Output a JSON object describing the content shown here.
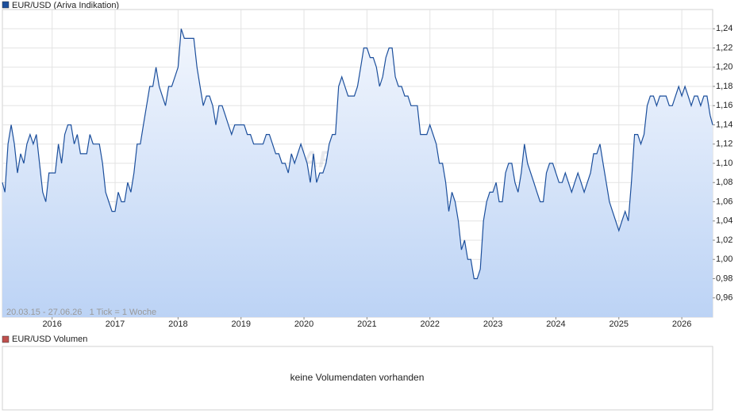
{
  "chart_data": {
    "type": "area",
    "series": [
      {
        "name": "EUR/USD (Ariva Indikation)",
        "color": "#1c4f9c",
        "x": [
          2015.21,
          2015.25,
          2015.3,
          2015.35,
          2015.4,
          2015.45,
          2015.5,
          2015.55,
          2015.6,
          2015.65,
          2015.7,
          2015.75,
          2015.8,
          2015.85,
          2015.9,
          2015.95,
          2016.0,
          2016.05,
          2016.1,
          2016.15,
          2016.2,
          2016.25,
          2016.3,
          2016.35,
          2016.4,
          2016.45,
          2016.5,
          2016.55,
          2016.6,
          2016.65,
          2016.7,
          2016.75,
          2016.8,
          2016.85,
          2016.9,
          2016.95,
          2017.0,
          2017.05,
          2017.1,
          2017.15,
          2017.2,
          2017.25,
          2017.3,
          2017.35,
          2017.4,
          2017.45,
          2017.5,
          2017.55,
          2017.6,
          2017.65,
          2017.7,
          2017.75,
          2017.8,
          2017.85,
          2017.9,
          2017.95,
          2018.0,
          2018.05,
          2018.1,
          2018.15,
          2018.2,
          2018.25,
          2018.3,
          2018.35,
          2018.4,
          2018.45,
          2018.5,
          2018.55,
          2018.6,
          2018.65,
          2018.7,
          2018.75,
          2018.8,
          2018.85,
          2018.9,
          2018.95,
          2019.0,
          2019.05,
          2019.1,
          2019.15,
          2019.2,
          2019.25,
          2019.3,
          2019.35,
          2019.4,
          2019.45,
          2019.5,
          2019.55,
          2019.6,
          2019.65,
          2019.7,
          2019.75,
          2019.8,
          2019.85,
          2019.9,
          2019.95,
          2020.0,
          2020.05,
          2020.1,
          2020.15,
          2020.2,
          2020.25,
          2020.3,
          2020.35,
          2020.4,
          2020.45,
          2020.5,
          2020.55,
          2020.6,
          2020.65,
          2020.7,
          2020.75,
          2020.8,
          2020.85,
          2020.9,
          2020.95,
          2021.0,
          2021.05,
          2021.1,
          2021.15,
          2021.2,
          2021.25,
          2021.3,
          2021.35,
          2021.4,
          2021.45,
          2021.5,
          2021.55,
          2021.6,
          2021.65,
          2021.7,
          2021.75,
          2021.8,
          2021.85,
          2021.9,
          2021.95,
          2022.0,
          2022.05,
          2022.1,
          2022.15,
          2022.2,
          2022.25,
          2022.3,
          2022.35,
          2022.4,
          2022.45,
          2022.5,
          2022.55,
          2022.6,
          2022.65,
          2022.7,
          2022.75,
          2022.8,
          2022.85,
          2022.9,
          2022.95,
          2023.0,
          2023.05,
          2023.1,
          2023.15,
          2023.2,
          2023.25,
          2023.3,
          2023.35,
          2023.4,
          2023.45,
          2023.5,
          2023.55,
          2023.6,
          2023.65,
          2023.7,
          2023.75,
          2023.8,
          2023.85,
          2023.9,
          2023.95,
          2024.0,
          2024.05,
          2024.1,
          2024.15,
          2024.2,
          2024.25,
          2024.3,
          2024.35,
          2024.4,
          2024.45,
          2024.5,
          2024.55,
          2024.6,
          2024.65,
          2024.7,
          2024.75,
          2024.8,
          2024.85,
          2024.9,
          2024.95,
          2025.0,
          2025.05,
          2025.1,
          2025.15,
          2025.2,
          2025.25,
          2025.3,
          2025.35,
          2025.4,
          2025.45,
          2025.5,
          2025.55,
          2025.6,
          2025.65,
          2025.7,
          2025.75,
          2025.8,
          2025.85,
          2025.9,
          2025.95,
          2026.0,
          2026.05,
          2026.1,
          2026.15,
          2026.2,
          2026.25,
          2026.3,
          2026.35,
          2026.4,
          2026.45,
          2026.49
        ],
        "values": [
          1.08,
          1.07,
          1.12,
          1.14,
          1.12,
          1.09,
          1.11,
          1.1,
          1.12,
          1.13,
          1.12,
          1.13,
          1.1,
          1.07,
          1.06,
          1.09,
          1.09,
          1.09,
          1.12,
          1.1,
          1.13,
          1.14,
          1.14,
          1.12,
          1.13,
          1.11,
          1.11,
          1.11,
          1.13,
          1.12,
          1.12,
          1.12,
          1.1,
          1.07,
          1.06,
          1.05,
          1.05,
          1.07,
          1.06,
          1.06,
          1.08,
          1.07,
          1.09,
          1.12,
          1.12,
          1.14,
          1.16,
          1.18,
          1.18,
          1.2,
          1.18,
          1.17,
          1.16,
          1.18,
          1.18,
          1.19,
          1.2,
          1.24,
          1.23,
          1.23,
          1.23,
          1.23,
          1.2,
          1.18,
          1.16,
          1.17,
          1.17,
          1.16,
          1.14,
          1.16,
          1.16,
          1.15,
          1.14,
          1.13,
          1.14,
          1.14,
          1.14,
          1.14,
          1.13,
          1.13,
          1.12,
          1.12,
          1.12,
          1.12,
          1.13,
          1.13,
          1.12,
          1.11,
          1.11,
          1.1,
          1.1,
          1.09,
          1.11,
          1.1,
          1.11,
          1.12,
          1.11,
          1.1,
          1.08,
          1.11,
          1.08,
          1.09,
          1.09,
          1.1,
          1.12,
          1.13,
          1.13,
          1.18,
          1.19,
          1.18,
          1.17,
          1.17,
          1.17,
          1.18,
          1.2,
          1.22,
          1.22,
          1.21,
          1.21,
          1.2,
          1.18,
          1.19,
          1.21,
          1.22,
          1.22,
          1.19,
          1.18,
          1.18,
          1.17,
          1.17,
          1.16,
          1.16,
          1.16,
          1.13,
          1.13,
          1.13,
          1.14,
          1.13,
          1.12,
          1.1,
          1.1,
          1.08,
          1.05,
          1.07,
          1.06,
          1.04,
          1.01,
          1.02,
          1.0,
          1.0,
          0.98,
          0.98,
          0.99,
          1.04,
          1.06,
          1.07,
          1.07,
          1.08,
          1.06,
          1.06,
          1.09,
          1.1,
          1.1,
          1.08,
          1.07,
          1.09,
          1.12,
          1.1,
          1.09,
          1.08,
          1.07,
          1.06,
          1.06,
          1.09,
          1.1,
          1.1,
          1.09,
          1.08,
          1.08,
          1.09,
          1.08,
          1.07,
          1.08,
          1.09,
          1.08,
          1.07,
          1.08,
          1.09,
          1.11,
          1.11,
          1.12,
          1.1,
          1.08,
          1.06,
          1.05,
          1.04,
          1.03,
          1.04,
          1.05,
          1.04,
          1.08,
          1.13,
          1.13,
          1.12,
          1.13,
          1.16,
          1.17,
          1.17,
          1.16,
          1.17,
          1.17,
          1.17,
          1.16,
          1.16,
          1.17,
          1.18,
          1.17,
          1.18,
          1.17,
          1.16,
          1.17,
          1.17,
          1.16,
          1.17,
          1.17,
          1.15,
          1.14
        ]
      }
    ],
    "xlim": [
      2015.21,
      2026.49
    ],
    "xticks": [
      2016,
      2017,
      2018,
      2019,
      2020,
      2021,
      2022,
      2023,
      2024,
      2025,
      2026
    ],
    "ylim": [
      0.94,
      1.26
    ],
    "yticks": [
      {
        "value": 0.96,
        "label": "0,96"
      },
      {
        "value": 0.98,
        "label": "0,98"
      },
      {
        "value": 1.0,
        "label": "1,00"
      },
      {
        "value": 1.02,
        "label": "1,02"
      },
      {
        "value": 1.04,
        "label": "1,04"
      },
      {
        "value": 1.06,
        "label": "1,06"
      },
      {
        "value": 1.08,
        "label": "1,08"
      },
      {
        "value": 1.1,
        "label": "1,10"
      },
      {
        "value": 1.12,
        "label": "1,12"
      },
      {
        "value": 1.14,
        "label": "1,14"
      },
      {
        "value": 1.16,
        "label": "1,16"
      },
      {
        "value": 1.18,
        "label": "1,18"
      },
      {
        "value": 1.2,
        "label": "1,20"
      },
      {
        "value": 1.22,
        "label": "1,22"
      },
      {
        "value": 1.24,
        "label": "1,24"
      }
    ],
    "grid": true,
    "range_label": "20.03.15 - 27.06.26   1 Tick = 1 Woche",
    "watermark": "ARIVA.DE"
  },
  "volume_panel": {
    "title": "EUR/USD Volumen",
    "color": "#c0504d",
    "message": "keine Volumendaten vorhanden"
  }
}
